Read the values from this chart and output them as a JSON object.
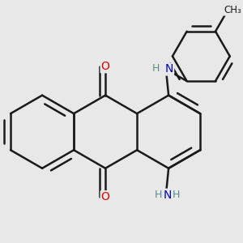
{
  "bg_color": "#e8e8e8",
  "bond_color": "#1a1a1a",
  "bond_width": 1.8,
  "atom_colors": {
    "O": "#dd0000",
    "N": "#0000bb",
    "C": "#1a1a1a",
    "H": "#5a8a8a"
  },
  "font_size_atom": 10,
  "font_size_h": 9,
  "font_size_ch3": 8.5
}
